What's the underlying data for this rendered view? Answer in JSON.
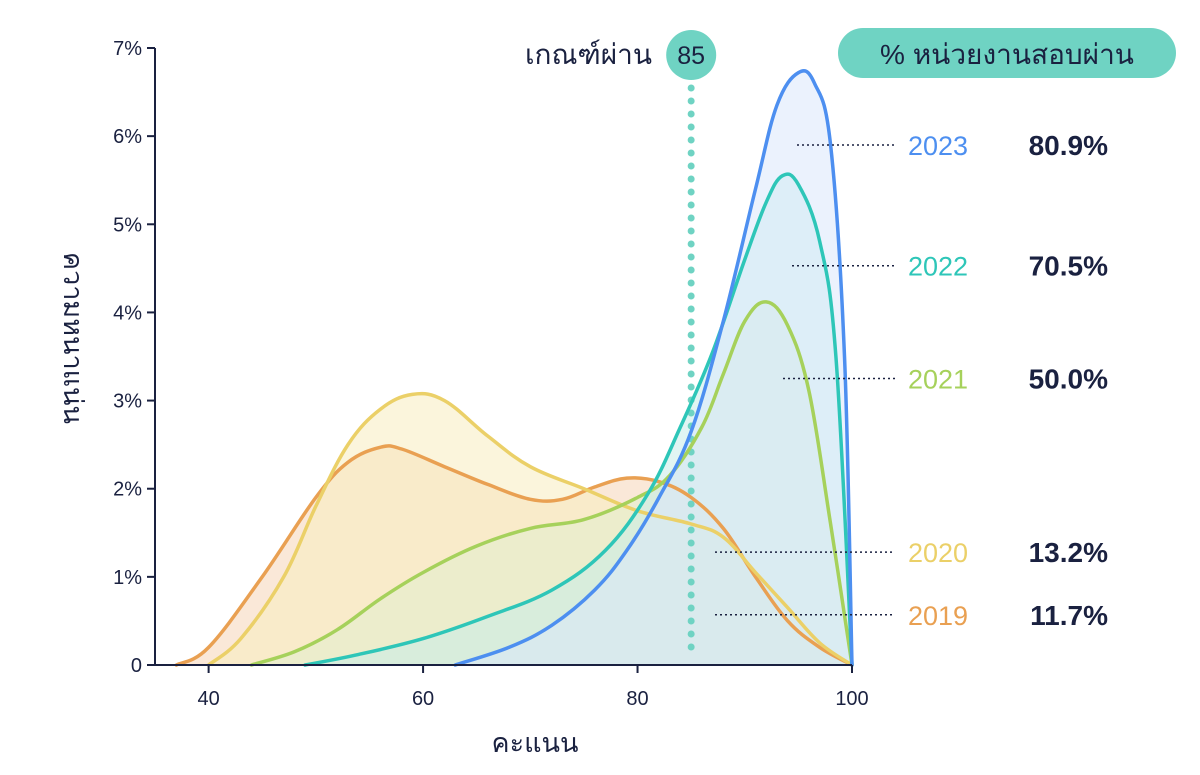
{
  "chart_data": {
    "type": "area",
    "xlabel": "คะแนน",
    "ylabel": "ความหนาแน่น",
    "xlim": [
      35,
      100
    ],
    "ylim": [
      0,
      7
    ],
    "x_ticks": [
      "40",
      "60",
      "80",
      "100"
    ],
    "x_tick_values": [
      40,
      60,
      80,
      100
    ],
    "y_ticks": [
      "0",
      "1%",
      "2%",
      "3%",
      "4%",
      "5%",
      "6%",
      "7%"
    ],
    "y_tick_values": [
      0,
      1,
      2,
      3,
      4,
      5,
      6,
      7
    ],
    "threshold": {
      "label": "เกณฑ์ผ่าน",
      "value": 85,
      "value_label": "85",
      "color": "#6fd3c3"
    },
    "legend_title": "% หน่วยงานสอบผ่าน",
    "legend_title_bg": "#6fd3c3",
    "series": [
      {
        "name": "2019",
        "pass_rate": "11.7%",
        "color": "#e9a052",
        "fill": "#f6d6b8",
        "points": [
          [
            37,
            0
          ],
          [
            40,
            0.2
          ],
          [
            45,
            1.0
          ],
          [
            50,
            1.9
          ],
          [
            53,
            2.3
          ],
          [
            56,
            2.47
          ],
          [
            58,
            2.45
          ],
          [
            62,
            2.25
          ],
          [
            66,
            2.05
          ],
          [
            70,
            1.88
          ],
          [
            73,
            1.88
          ],
          [
            76,
            2.02
          ],
          [
            79,
            2.12
          ],
          [
            82,
            2.08
          ],
          [
            85,
            1.9
          ],
          [
            88,
            1.55
          ],
          [
            91,
            1.0
          ],
          [
            94,
            0.5
          ],
          [
            97,
            0.2
          ],
          [
            100,
            0
          ]
        ],
        "label_y": 0.57
      },
      {
        "name": "2020",
        "pass_rate": "13.2%",
        "color": "#ebd068",
        "fill": "#f7ecbf",
        "points": [
          [
            40,
            0
          ],
          [
            43,
            0.3
          ],
          [
            47,
            1.0
          ],
          [
            50,
            1.8
          ],
          [
            53,
            2.5
          ],
          [
            56,
            2.9
          ],
          [
            59,
            3.07
          ],
          [
            62,
            3.0
          ],
          [
            66,
            2.6
          ],
          [
            70,
            2.25
          ],
          [
            75,
            2.0
          ],
          [
            80,
            1.75
          ],
          [
            85,
            1.6
          ],
          [
            88,
            1.45
          ],
          [
            91,
            1.05
          ],
          [
            94,
            0.65
          ],
          [
            97,
            0.25
          ],
          [
            100,
            0
          ]
        ],
        "label_y": 1.28
      },
      {
        "name": "2021",
        "pass_rate": "50.0%",
        "color": "#a6d15b",
        "fill": "#e1efcd",
        "points": [
          [
            44,
            0
          ],
          [
            48,
            0.15
          ],
          [
            52,
            0.4
          ],
          [
            56,
            0.75
          ],
          [
            60,
            1.05
          ],
          [
            65,
            1.35
          ],
          [
            70,
            1.55
          ],
          [
            75,
            1.65
          ],
          [
            80,
            1.9
          ],
          [
            83,
            2.15
          ],
          [
            86,
            2.7
          ],
          [
            88,
            3.3
          ],
          [
            90,
            3.9
          ],
          [
            92,
            4.12
          ],
          [
            94,
            3.85
          ],
          [
            96,
            3.1
          ],
          [
            98,
            1.6
          ],
          [
            100,
            0
          ]
        ],
        "label_y": 3.25
      },
      {
        "name": "2022",
        "pass_rate": "70.5%",
        "color": "#2ec6b8",
        "fill": "#c9ecea",
        "points": [
          [
            49,
            0
          ],
          [
            54,
            0.12
          ],
          [
            60,
            0.3
          ],
          [
            66,
            0.55
          ],
          [
            72,
            0.85
          ],
          [
            77,
            1.3
          ],
          [
            81,
            1.95
          ],
          [
            84,
            2.7
          ],
          [
            87,
            3.55
          ],
          [
            90,
            4.6
          ],
          [
            92,
            5.25
          ],
          [
            93.5,
            5.55
          ],
          [
            95,
            5.45
          ],
          [
            97,
            4.8
          ],
          [
            98.5,
            3.5
          ],
          [
            100,
            0
          ]
        ],
        "label_y": 4.53
      },
      {
        "name": "2023",
        "pass_rate": "80.9%",
        "color": "#4d8ff0",
        "fill": "#dbe8fb",
        "points": [
          [
            63,
            0
          ],
          [
            68,
            0.2
          ],
          [
            72,
            0.45
          ],
          [
            76,
            0.85
          ],
          [
            79,
            1.3
          ],
          [
            82,
            1.9
          ],
          [
            85,
            2.65
          ],
          [
            88,
            3.9
          ],
          [
            91,
            5.4
          ],
          [
            93,
            6.35
          ],
          [
            95,
            6.72
          ],
          [
            96.5,
            6.6
          ],
          [
            98,
            5.9
          ],
          [
            99.3,
            3.5
          ],
          [
            100,
            0
          ]
        ],
        "label_y": 5.9
      }
    ]
  }
}
